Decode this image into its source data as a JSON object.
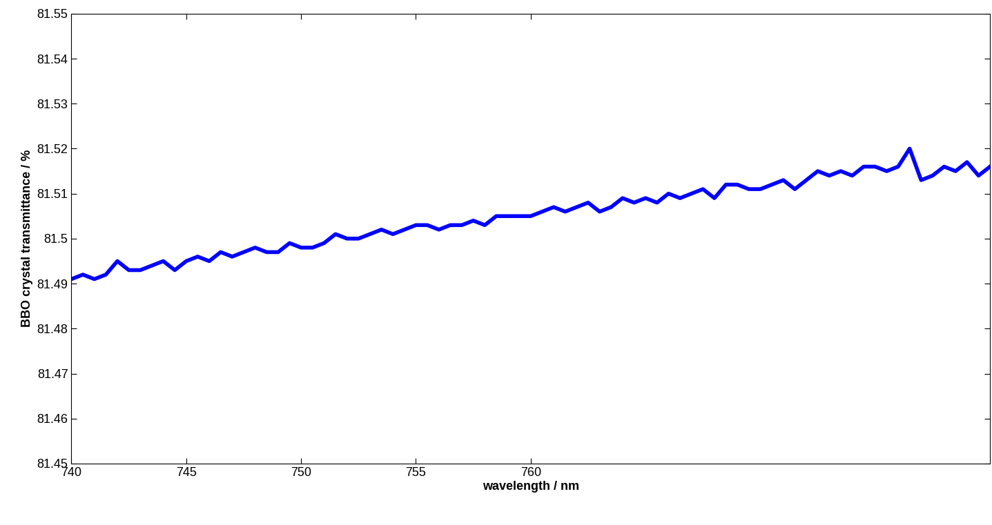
{
  "chart_data": {
    "type": "line",
    "x_label": "wavelength / nm",
    "y_label": "BBO crystal transmittance / %",
    "x": [
      740,
      740.5,
      741,
      741.5,
      742,
      742.5,
      743,
      743.5,
      744,
      744.5,
      745,
      745.5,
      746,
      746.5,
      747,
      747.5,
      748,
      748.5,
      749,
      749.5,
      750,
      750.5,
      751,
      751.5,
      752,
      752.5,
      753,
      753.5,
      754,
      754.5,
      755,
      755.5,
      756,
      756.5,
      757,
      757.5,
      758,
      758.5,
      759,
      759.5,
      760,
      760.5,
      761,
      761.5,
      762,
      762.5,
      763,
      763.5,
      764,
      764.5,
      765,
      765.5,
      766,
      766.5,
      767,
      767.5,
      768,
      768.5,
      769,
      769.5,
      770,
      770.5,
      771,
      771.5,
      772,
      772.5,
      773,
      773.5,
      774,
      774.5,
      775,
      775.5,
      776,
      776.5,
      777,
      777.5,
      778,
      778.5,
      779,
      779.5,
      780
    ],
    "values": [
      81.491,
      81.492,
      81.491,
      81.492,
      81.495,
      81.493,
      81.493,
      81.494,
      81.495,
      81.493,
      81.495,
      81.496,
      81.495,
      81.497,
      81.496,
      81.497,
      81.498,
      81.497,
      81.497,
      81.499,
      81.498,
      81.498,
      81.499,
      81.501,
      81.5,
      81.5,
      81.501,
      81.502,
      81.501,
      81.502,
      81.503,
      81.503,
      81.502,
      81.503,
      81.503,
      81.504,
      81.503,
      81.505,
      81.505,
      81.505,
      81.505,
      81.506,
      81.507,
      81.506,
      81.507,
      81.508,
      81.506,
      81.507,
      81.509,
      81.508,
      81.509,
      81.508,
      81.51,
      81.509,
      81.51,
      81.511,
      81.509,
      81.512,
      81.512,
      81.511,
      81.511,
      81.512,
      81.513,
      81.511,
      81.513,
      81.515,
      81.514,
      81.515,
      81.514,
      81.516,
      81.516,
      81.515,
      81.516,
      81.52,
      81.513,
      81.514,
      81.516,
      81.515,
      81.517,
      81.514,
      81.516
    ],
    "color": "#0000ff",
    "xlim": [
      740,
      780
    ],
    "xticks": [
      740,
      745,
      750,
      755,
      760
    ],
    "ylim": [
      81.45,
      81.55
    ],
    "yticks": [
      81.45,
      81.46,
      81.47,
      81.48,
      81.49,
      81.5,
      81.51,
      81.52,
      81.53,
      81.54,
      81.55
    ],
    "grid": false
  }
}
